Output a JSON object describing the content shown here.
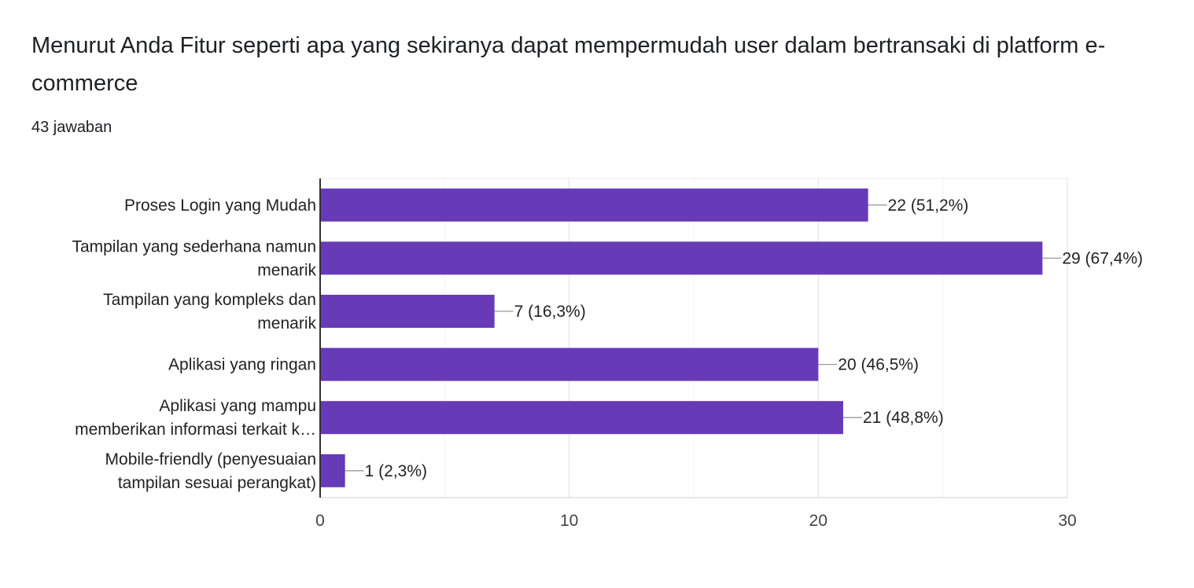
{
  "question": {
    "title": "Menurut Anda Fitur seperti apa yang sekiranya dapat mempermudah user dalam bertransaki di platform e-commerce",
    "response_count": "43 jawaban"
  },
  "colors": {
    "bar": "#673ab7",
    "gridline": "#ebebeb",
    "axis": "#333333",
    "leader": "#999999"
  },
  "chart_data": {
    "type": "bar",
    "orientation": "horizontal",
    "categories": [
      "Proses Login yang Mudah",
      "Tampilan yang sederhana namun menarik",
      "Tampilan yang kompleks dan menarik",
      "Aplikasi yang ringan",
      "Aplikasi yang mampu memberikan informasi terkait k…",
      "Mobile-friendly (penyesuaian tampilan sesuai perangkat)"
    ],
    "category_lines": [
      [
        "Proses Login yang Mudah"
      ],
      [
        "Tampilan yang sederhana namun",
        "menarik"
      ],
      [
        "Tampilan yang kompleks dan",
        "menarik"
      ],
      [
        "Aplikasi yang ringan"
      ],
      [
        "Aplikasi yang mampu",
        "memberikan informasi terkait k…"
      ],
      [
        "Mobile-friendly (penyesuaian",
        "tampilan sesuai perangkat)"
      ]
    ],
    "values": [
      22,
      29,
      7,
      20,
      21,
      1
    ],
    "value_labels": [
      "22 (51,2%)",
      "29 (67,4%)",
      "7 (16,3%)",
      "20 (46,5%)",
      "21 (48,8%)",
      "1 (2,3%)"
    ],
    "xlim": [
      0,
      30
    ],
    "xticks": [
      0,
      10,
      20,
      30
    ],
    "xtick_labels": [
      "0",
      "10",
      "20",
      "30"
    ],
    "minor_gridlines": [
      5,
      15,
      25
    ],
    "grid": true,
    "title": "",
    "xlabel": "",
    "ylabel": ""
  }
}
